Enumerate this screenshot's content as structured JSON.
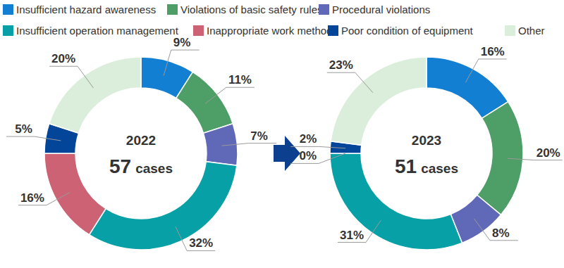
{
  "chart_data": {
    "type": "pie",
    "categories": [
      "Insufficient hazard awareness",
      "Violations of basic safety rules",
      "Procedural violations",
      "Insufficient operation management",
      "Inappropriate work methods",
      "Poor condition of equipment",
      "Other"
    ],
    "colors": [
      "#127fd2",
      "#4e9e67",
      "#5f69b7",
      "#06a0a6",
      "#cc6273",
      "#034599",
      "#dbeedc"
    ],
    "data_labels": true,
    "series": [
      {
        "name": "2022",
        "total": 57,
        "total_unit": "cases",
        "values": [
          9,
          11,
          7,
          32,
          16,
          5,
          20
        ],
        "value_labels": [
          "9%",
          "11%",
          "7%",
          "32%",
          "16%",
          "5%",
          "20%"
        ]
      },
      {
        "name": "2023",
        "total": 51,
        "total_unit": "cases",
        "values": [
          16,
          20,
          8,
          31,
          0,
          2,
          23
        ],
        "value_labels": [
          "16%",
          "20%",
          "8%",
          "31%",
          "0%",
          "2%",
          "23%"
        ]
      }
    ]
  }
}
